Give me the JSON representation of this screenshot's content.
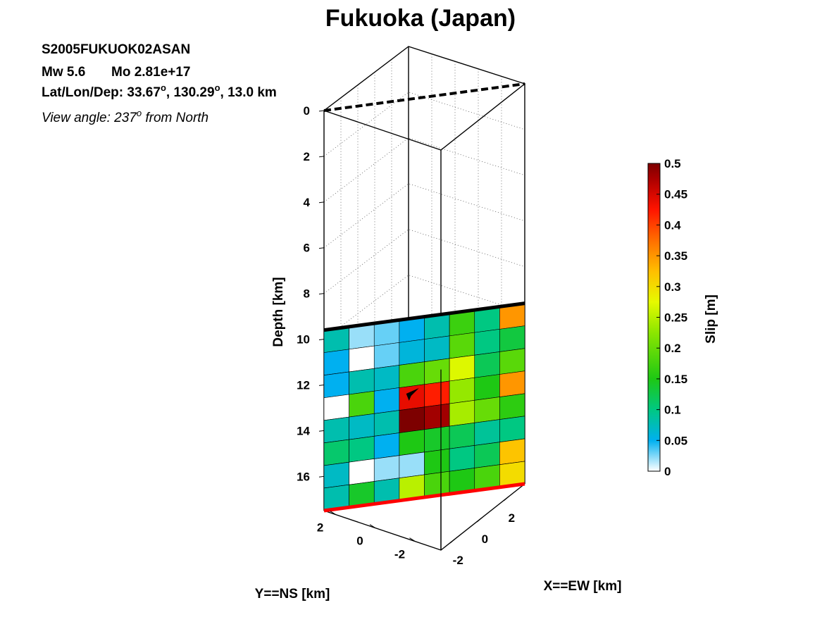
{
  "chart_data": {
    "type": "heatmap",
    "title": "Fukuoka (Japan)",
    "event_id": "S2005FUKUOK02ASAN",
    "magnitude_text": "Mw 5.6",
    "moment_text": "Mo 2.81e+17",
    "location_prefix": "Lat/Lon/Dep: ",
    "location_lat": "33.67",
    "location_lon": "130.29",
    "location_dep": "13.0 km",
    "view_prefix": "View angle: ",
    "view_value": "237",
    "view_suffix": " from North",
    "zlabel": "Depth [km]",
    "ylabel": "Y==NS [km]",
    "xlabel": "X==EW [km]",
    "colorbar_label": "Slip [m]",
    "depth_ticks": [
      "0",
      "2",
      "4",
      "6",
      "8",
      "10",
      "12",
      "14",
      "16"
    ],
    "ns_ticks": [
      "2",
      "0",
      "-2"
    ],
    "ew_ticks": [
      "-2",
      "0",
      "2"
    ],
    "colorbar_ticks": [
      "0",
      "0.05",
      "0.1",
      "0.15",
      "0.2",
      "0.25",
      "0.3",
      "0.35",
      "0.4",
      "0.45",
      "0.5"
    ],
    "clim": [
      0,
      0.5
    ],
    "depth_range": [
      0,
      17.5
    ],
    "fault_top_depth": 9.6,
    "fault_bottom_depth": 17.5,
    "hypocenter": {
      "col": 3.5,
      "row": 3.4
    },
    "slip_grid": [
      [
        0.08,
        0.02,
        0.03,
        0.05,
        0.08,
        0.17,
        0.1,
        0.35
      ],
      [
        0.05,
        0.0,
        0.03,
        0.06,
        0.07,
        0.19,
        0.1,
        0.13
      ],
      [
        0.05,
        0.08,
        0.07,
        0.18,
        0.2,
        0.27,
        0.12,
        0.19
      ],
      [
        0.0,
        0.18,
        0.05,
        0.44,
        0.42,
        0.23,
        0.15,
        0.35
      ],
      [
        0.08,
        0.07,
        0.08,
        0.5,
        0.48,
        0.24,
        0.2,
        0.16
      ],
      [
        0.11,
        0.1,
        0.05,
        0.15,
        0.14,
        0.12,
        0.09,
        0.1
      ],
      [
        0.07,
        0.0,
        0.02,
        0.02,
        0.15,
        0.1,
        0.12,
        0.32
      ],
      [
        0.08,
        0.14,
        0.08,
        0.25,
        0.18,
        0.15,
        0.18,
        0.3
      ]
    ],
    "colors": {
      "top_edge": "#000000",
      "bottom_edge": "#ff0000",
      "top_trace": "#000000"
    }
  }
}
